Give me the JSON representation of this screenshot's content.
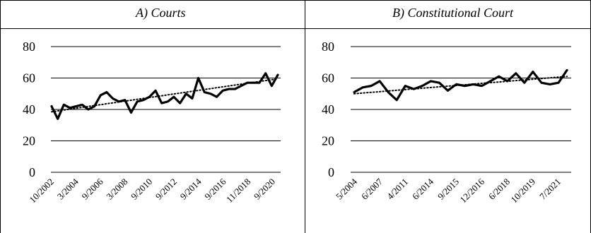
{
  "chart_data": [
    {
      "type": "line",
      "title": "A) Courts",
      "xlabel": "",
      "ylabel": "",
      "ylim": [
        0,
        80
      ],
      "yticks": [
        0,
        20,
        40,
        60,
        80
      ],
      "grid": true,
      "legend": "none",
      "x_tick_labels": [
        "10/2002",
        "3/2004",
        "9/2006",
        "3/2008",
        "9/2010",
        "9/2012",
        "9/2014",
        "9/2016",
        "11/2018",
        "9/2020"
      ],
      "series": [
        {
          "style": "solid-thick",
          "values": [
            42,
            34,
            43,
            41,
            42,
            43,
            40,
            42,
            49,
            51,
            47,
            45,
            46,
            38,
            45,
            46,
            48,
            52,
            44,
            45,
            48,
            44,
            50,
            47,
            60,
            51,
            50,
            48,
            52,
            53,
            53,
            55,
            57,
            57,
            57,
            63,
            55,
            62
          ]
        },
        {
          "style": "dotted-trend",
          "values": [
            38.5,
            59.5
          ]
        }
      ],
      "colors": {
        "line": "#000000",
        "grid": "#000000"
      }
    },
    {
      "type": "line",
      "title": "B) Constitutional Court",
      "xlabel": "",
      "ylabel": "",
      "ylim": [
        0,
        80
      ],
      "yticks": [
        0,
        20,
        40,
        60,
        80
      ],
      "grid": true,
      "legend": "none",
      "x_tick_labels": [
        "5/2004",
        "6/2007",
        "4/2011",
        "6/2014",
        "9/2015",
        "12/2016",
        "6/2018",
        "10/2019",
        "7/2021"
      ],
      "series": [
        {
          "style": "solid-thick",
          "values": [
            51,
            54,
            55,
            58,
            51,
            46,
            55,
            53,
            55,
            58,
            57,
            52,
            56,
            55,
            56,
            55,
            58,
            61,
            58,
            63,
            57,
            64,
            57,
            56,
            57,
            65
          ]
        },
        {
          "style": "dotted-trend",
          "values": [
            50,
            61
          ]
        }
      ],
      "colors": {
        "line": "#000000",
        "grid": "#000000"
      }
    }
  ]
}
